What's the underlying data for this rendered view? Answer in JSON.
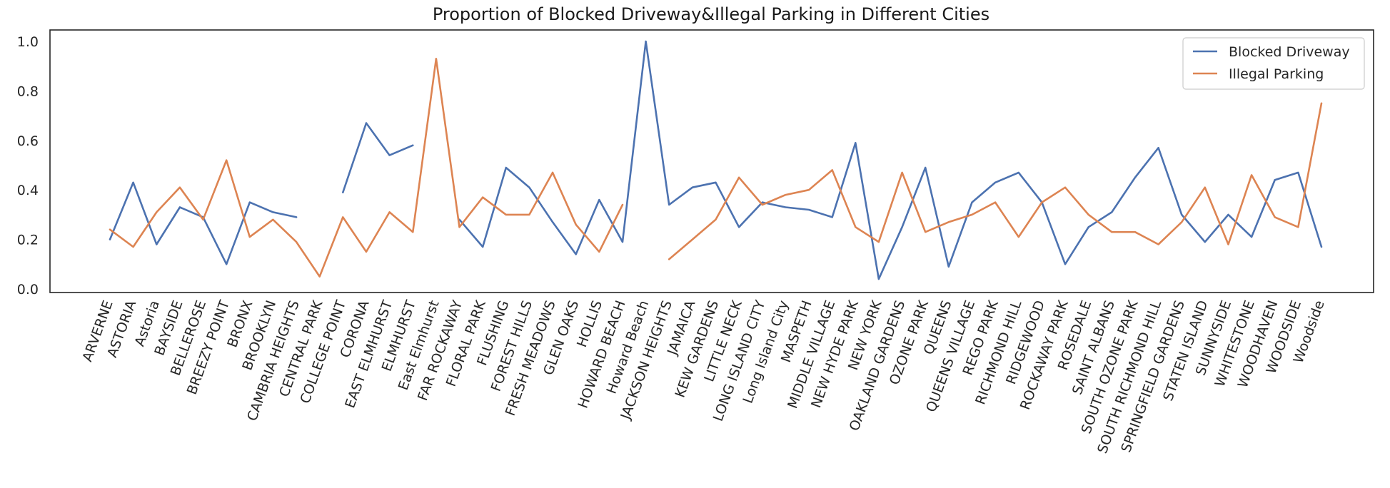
{
  "chart_data": {
    "type": "line",
    "title": "Proportion of Blocked Driveway&Illegal Parking in Different Cities",
    "xlabel": "",
    "ylabel": "",
    "ylim": [
      0,
      1.05
    ],
    "yticks": [
      0.0,
      0.2,
      0.4,
      0.6,
      0.8,
      1.0
    ],
    "ytick_labels": [
      "0.0",
      "0.2",
      "0.4",
      "0.6",
      "0.8",
      "1.0"
    ],
    "grid": false,
    "legend_position": "top-right",
    "categories": [
      "ARVERNE",
      "ASTORIA",
      "Astoria",
      "BAYSIDE",
      "BELLEROSE",
      "BREEZY POINT",
      "BRONX",
      "BROOKLYN",
      "CAMBRIA HEIGHTS",
      "CENTRAL PARK",
      "COLLEGE POINT",
      "CORONA",
      "EAST ELMHURST",
      "ELMHURST",
      "East Elmhurst",
      "FAR ROCKAWAY",
      "FLORAL PARK",
      "FLUSHING",
      "FOREST HILLS",
      "FRESH MEADOWS",
      "GLEN OAKS",
      "HOLLIS",
      "HOWARD BEACH",
      "Howard Beach",
      "JACKSON HEIGHTS",
      "JAMAICA",
      "KEW GARDENS",
      "LITTLE NECK",
      "LONG ISLAND CITY",
      "Long Island City",
      "MASPETH",
      "MIDDLE VILLAGE",
      "NEW HYDE PARK",
      "NEW YORK",
      "OAKLAND GARDENS",
      "OZONE PARK",
      "QUEENS",
      "QUEENS VILLAGE",
      "REGO PARK",
      "RICHMOND HILL",
      "RIDGEWOOD",
      "ROCKAWAY PARK",
      "ROSEDALE",
      "SAINT ALBANS",
      "SOUTH OZONE PARK",
      "SOUTH RICHMOND HILL",
      "SPRINGFIELD GARDENS",
      "STATEN ISLAND",
      "SUNNYSIDE",
      "WHITESTONE",
      "WOODHAVEN",
      "WOODSIDE",
      "Woodside"
    ],
    "series": [
      {
        "name": "Blocked Driveway",
        "color": "#4c72b0",
        "values": [
          0.2,
          0.43,
          0.18,
          0.33,
          0.29,
          0.1,
          0.35,
          0.31,
          0.29,
          null,
          0.39,
          0.67,
          0.54,
          0.58,
          null,
          0.28,
          0.17,
          0.49,
          0.41,
          0.27,
          0.14,
          0.36,
          0.19,
          1.0,
          0.34,
          0.41,
          0.43,
          0.25,
          0.35,
          0.33,
          0.32,
          0.29,
          0.59,
          0.04,
          0.25,
          0.49,
          0.09,
          0.35,
          0.43,
          0.47,
          0.35,
          0.1,
          0.25,
          0.31,
          0.45,
          0.57,
          0.3,
          0.19,
          0.3,
          0.21,
          0.44,
          0.47,
          0.17
        ]
      },
      {
        "name": "Illegal Parking",
        "color": "#dd8452",
        "values": [
          0.24,
          0.17,
          0.31,
          0.41,
          0.28,
          0.52,
          0.21,
          0.28,
          0.19,
          0.05,
          0.29,
          0.15,
          0.31,
          0.23,
          0.93,
          0.25,
          0.37,
          0.3,
          0.3,
          0.47,
          0.26,
          0.15,
          0.34,
          null,
          0.12,
          0.2,
          0.28,
          0.45,
          0.34,
          0.38,
          0.4,
          0.48,
          0.25,
          0.19,
          0.47,
          0.23,
          0.27,
          0.3,
          0.35,
          0.21,
          0.35,
          0.41,
          0.3,
          0.23,
          0.23,
          0.18,
          0.27,
          0.41,
          0.18,
          0.46,
          0.29,
          0.25,
          0.75
        ]
      }
    ]
  }
}
